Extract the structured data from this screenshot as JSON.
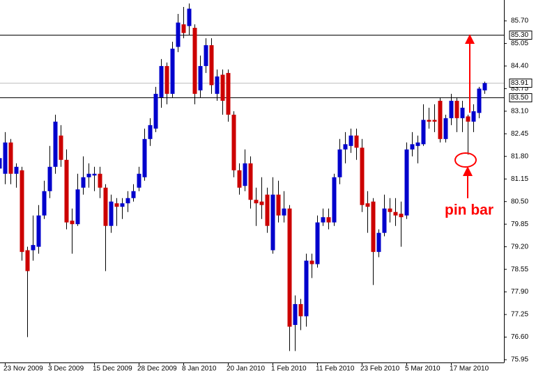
{
  "chart_data": {
    "type": "candlestick",
    "categories": [
      null,
      "23 Nov 2009",
      null,
      null,
      null,
      null,
      null,
      null,
      null,
      "3 Dec 2009",
      null,
      null,
      null,
      null,
      null,
      null,
      null,
      "15 Dec 2009",
      null,
      null,
      null,
      null,
      null,
      null,
      null,
      "28 Dec 2009",
      null,
      null,
      null,
      null,
      null,
      null,
      null,
      "8 Jan 2010",
      null,
      null,
      null,
      null,
      null,
      null,
      null,
      "20 Jan 2010",
      null,
      null,
      null,
      null,
      null,
      null,
      null,
      "1 Feb 2010",
      null,
      null,
      null,
      null,
      null,
      null,
      null,
      "11 Feb 2010",
      null,
      null,
      null,
      null,
      null,
      null,
      null,
      "23 Feb 2010",
      null,
      null,
      null,
      null,
      null,
      null,
      null,
      "5 Mar 2010",
      null,
      null,
      null,
      null,
      null,
      null,
      null,
      "17 Mar 2010",
      null,
      null,
      null,
      null,
      null,
      null
    ],
    "open": [
      81.45,
      81.3,
      82.2,
      81.3,
      81.4,
      79.1,
      79.1,
      79.2,
      80.1,
      80.8,
      81.5,
      82.4,
      81.7,
      79.95,
      79.85,
      80.9,
      81.2,
      81.25,
      81.3,
      80.9,
      79.8,
      80.45,
      80.35,
      80.45,
      80.6,
      80.9,
      81.2,
      82.3,
      82.6,
      83.5,
      84.4,
      83.6,
      84.95,
      85.6,
      85.55,
      85.5,
      83.7,
      84.4,
      85.0,
      83.6,
      84.15,
      84.2,
      83.0,
      81.4,
      80.95,
      81.6,
      80.55,
      80.5,
      80.7,
      79.1,
      80.7,
      80.1,
      80.3,
      76.95,
      77.55,
      77.2,
      78.8,
      78.7,
      79.9,
      80.05,
      79.9,
      81.2,
      82.0,
      82.1,
      82.4,
      82.05,
      80.45,
      80.5,
      79.05,
      79.6,
      80.3,
      80.2,
      80.15,
      80.1,
      82.0,
      82.1,
      82.15,
      82.85,
      82.85,
      83.4,
      82.3,
      82.9,
      83.4,
      82.9,
      82.95,
      82.8,
      83.05,
      83.7
    ],
    "high": [
      81.9,
      82.5,
      82.3,
      81.6,
      81.5,
      79.2,
      80.1,
      80.4,
      81.1,
      82.1,
      83.0,
      82.7,
      82.0,
      80.3,
      81.3,
      81.8,
      81.6,
      81.5,
      81.5,
      81.0,
      80.7,
      80.6,
      80.6,
      80.8,
      81.0,
      81.5,
      82.6,
      82.9,
      83.8,
      84.6,
      84.5,
      85.1,
      85.9,
      86.1,
      86.2,
      85.6,
      84.7,
      85.2,
      85.2,
      84.3,
      84.3,
      84.3,
      83.1,
      81.6,
      82.0,
      81.8,
      80.9,
      81.2,
      80.9,
      81.2,
      81.1,
      80.8,
      80.4,
      77.8,
      77.7,
      79.0,
      79.0,
      80.1,
      80.3,
      80.3,
      81.3,
      82.3,
      82.5,
      82.6,
      82.6,
      82.3,
      80.8,
      80.6,
      79.7,
      80.7,
      80.6,
      80.6,
      80.5,
      82.2,
      82.5,
      82.4,
      83.3,
      83.2,
      83.3,
      83.5,
      83.0,
      83.6,
      83.5,
      83.4,
      83.0,
      83.3,
      83.8,
      83.95
    ],
    "low": [
      81.3,
      81.0,
      81.0,
      80.9,
      78.8,
      76.6,
      78.8,
      79.0,
      80.0,
      80.6,
      81.3,
      81.5,
      79.7,
      79.0,
      79.8,
      80.7,
      80.9,
      80.8,
      80.6,
      78.5,
      79.6,
      79.8,
      80.0,
      80.2,
      80.5,
      80.8,
      81.1,
      82.1,
      82.5,
      83.2,
      83.3,
      83.5,
      84.8,
      85.2,
      85.3,
      83.3,
      83.5,
      84.2,
      83.6,
      83.4,
      83.0,
      82.8,
      81.2,
      80.7,
      80.8,
      80.3,
      79.8,
      80.0,
      79.6,
      79.0,
      79.9,
      79.9,
      76.2,
      76.2,
      76.8,
      76.9,
      78.3,
      78.6,
      79.8,
      79.7,
      79.8,
      81.0,
      81.6,
      81.9,
      81.7,
      80.2,
      79.6,
      78.1,
      78.9,
      79.5,
      79.9,
      79.8,
      79.2,
      80.0,
      81.8,
      81.6,
      82.1,
      82.6,
      82.5,
      82.2,
      82.2,
      82.7,
      82.5,
      82.5,
      81.85,
      82.5,
      82.9,
      83.6
    ],
    "close": [
      81.75,
      82.2,
      81.3,
      81.5,
      79.05,
      78.5,
      79.25,
      80.1,
      80.8,
      81.5,
      82.8,
      81.7,
      79.9,
      79.85,
      80.85,
      81.2,
      81.3,
      81.3,
      80.9,
      79.8,
      80.5,
      80.35,
      80.45,
      80.6,
      80.8,
      81.3,
      82.3,
      82.7,
      83.6,
      84.4,
      83.6,
      84.9,
      85.65,
      85.35,
      86.05,
      83.6,
      84.4,
      85.0,
      83.85,
      84.1,
      83.4,
      83.0,
      81.4,
      80.9,
      81.6,
      80.55,
      80.45,
      80.4,
      79.8,
      80.7,
      80.1,
      80.3,
      76.9,
      77.55,
      77.2,
      78.8,
      78.7,
      79.9,
      80.05,
      79.9,
      81.2,
      82.0,
      82.15,
      82.4,
      82.05,
      80.4,
      80.35,
      79.05,
      79.6,
      80.3,
      80.2,
      80.1,
      80.05,
      82.0,
      82.15,
      82.2,
      82.85,
      82.8,
      82.8,
      82.3,
      82.9,
      83.4,
      82.9,
      83.2,
      82.8,
      83.1,
      83.75,
      83.91
    ],
    "up_color": "#0000cc",
    "down_color": "#cc0000",
    "ylim": [
      75.87,
      86.3
    ],
    "yticks": [
      {
        "value": 85.7,
        "label": "85.70"
      },
      85.05,
      {
        "value": 84.4,
        "label": "84.40"
      },
      83.75,
      {
        "value": 83.1,
        "label": "83.10"
      },
      82.45,
      {
        "value": 81.8,
        "label": "81.80"
      },
      81.15,
      {
        "value": 80.5,
        "label": "80.50"
      },
      79.85,
      {
        "value": 79.2,
        "label": "79.20"
      },
      78.55,
      {
        "value": 77.9,
        "label": "77.90"
      },
      77.25,
      {
        "value": 76.6,
        "label": "76.60"
      },
      75.95
    ],
    "hlines": [
      {
        "value": 85.3,
        "label": "85.30",
        "color": "#000000"
      },
      {
        "value": 83.91,
        "label": "83.91",
        "color": "#c0c0c0"
      },
      {
        "value": 83.5,
        "label": "83.50",
        "color": "#000000"
      }
    ],
    "annotation": "pin bar"
  }
}
